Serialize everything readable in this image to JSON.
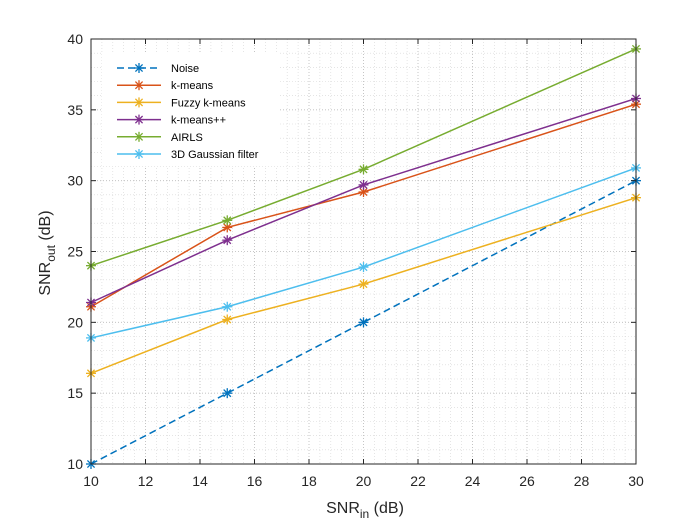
{
  "chart_data": {
    "type": "line",
    "title": "",
    "xlabel": {
      "main": "SNR",
      "sub": "in",
      "unit": " (dB)"
    },
    "ylabel": {
      "main": "SNR",
      "sub": "out",
      "unit": " (dB)"
    },
    "xlim": [
      10,
      30
    ],
    "ylim": [
      10,
      40
    ],
    "xticks": [
      "10",
      "12",
      "14",
      "16",
      "18",
      "20",
      "22",
      "24",
      "26",
      "28",
      "30"
    ],
    "yticks": [
      "10",
      "15",
      "20",
      "25",
      "30",
      "35",
      "40"
    ],
    "grid": "major-and-minor-dotted",
    "legend_position": "top-left",
    "x": [
      10,
      15,
      20,
      30
    ],
    "series": [
      {
        "name": "Noise",
        "color": "#0072BD",
        "dashed": true,
        "marker": "asterisk",
        "values": [
          10,
          15,
          20,
          30
        ]
      },
      {
        "name": "k-means",
        "color": "#D95319",
        "dashed": false,
        "marker": "asterisk",
        "values": [
          21.1,
          26.7,
          29.2,
          35.4
        ]
      },
      {
        "name": "Fuzzy k-means",
        "color": "#EDB120",
        "dashed": false,
        "marker": "asterisk",
        "values": [
          16.4,
          20.2,
          22.7,
          28.8
        ]
      },
      {
        "name": "k-means++",
        "color": "#7E2F8E",
        "dashed": false,
        "marker": "asterisk",
        "values": [
          21.4,
          25.8,
          29.7,
          35.8
        ]
      },
      {
        "name": "AIRLS",
        "color": "#77AC30",
        "dashed": false,
        "marker": "asterisk",
        "values": [
          24.0,
          27.2,
          30.8,
          39.3
        ]
      },
      {
        "name": "3D Gaussian filter",
        "color": "#4DBEEE",
        "dashed": false,
        "marker": "asterisk",
        "values": [
          18.9,
          21.1,
          23.9,
          30.9
        ]
      }
    ]
  }
}
